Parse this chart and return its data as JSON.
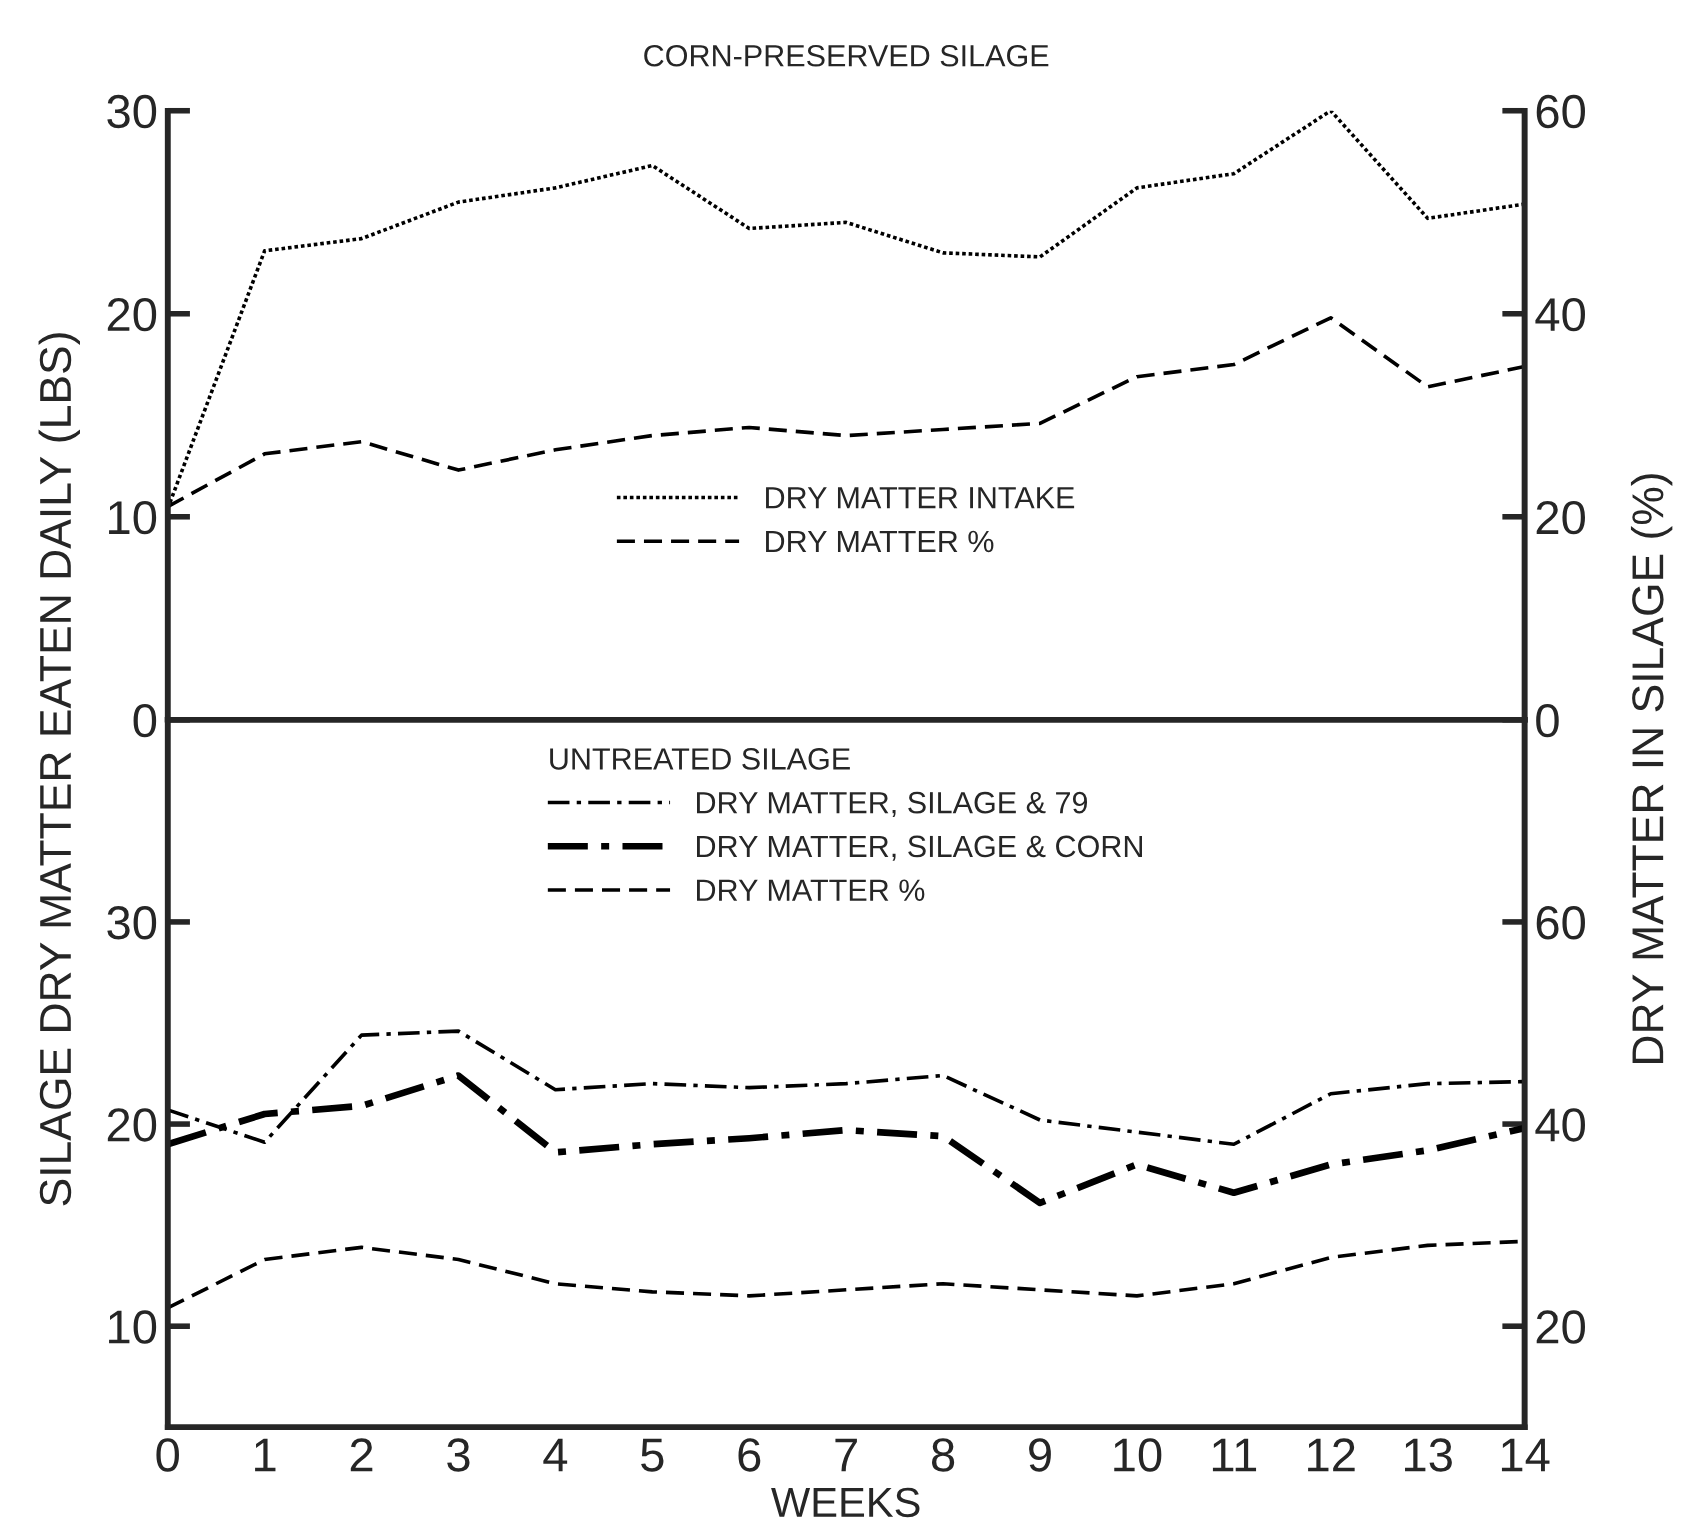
{
  "chart_data": [
    {
      "type": "line",
      "title": "CORN-PRESERVED SILAGE",
      "ylabel": "SILAGE DRY MATTER EATEN DAILY (LBS)",
      "y2label": "DRY MATTER IN SILAGE (%)",
      "x": [
        0,
        1,
        2,
        3,
        4,
        5,
        6,
        7,
        8,
        9,
        10,
        11,
        12,
        13,
        14
      ],
      "xlim": [
        0,
        14
      ],
      "ylim": [
        0,
        30
      ],
      "yticks": [
        0,
        10,
        20,
        30
      ],
      "y2lim": [
        0,
        60
      ],
      "y2ticks": [
        0,
        20,
        40,
        60
      ],
      "tick_labels": "y",
      "legend": "bottom",
      "grid": false,
      "series": [
        {
          "name": "DRY MATTER INTAKE",
          "color": "#000000",
          "line_style": "dotted",
          "values": [
            10.4,
            23.1,
            23.7,
            25.5,
            26.2,
            27.3,
            24.2,
            24.5,
            23.0,
            22.8,
            26.2,
            26.9,
            30.0,
            24.7,
            25.4
          ]
        },
        {
          "name": "DRY MATTER %",
          "color": "#000000",
          "line_style": "dashed",
          "axis": "y2",
          "values": [
            21.0,
            26.2,
            27.4,
            24.6,
            26.6,
            28.0,
            28.8,
            28.0,
            28.6,
            29.2,
            33.8,
            35.0,
            39.6,
            32.8,
            34.8
          ]
        }
      ]
    },
    {
      "type": "line",
      "xlabel": "WEEKS",
      "legend_title": "UNTREATED SILAGE",
      "x": [
        0,
        1,
        2,
        3,
        4,
        5,
        6,
        7,
        8,
        9,
        10,
        11,
        12,
        13,
        14
      ],
      "xlim": [
        0,
        14
      ],
      "xticks": [
        0,
        1,
        2,
        3,
        4,
        5,
        6,
        7,
        8,
        9,
        10,
        11,
        12,
        13,
        14
      ],
      "ylim": [
        5,
        40
      ],
      "yticks": [
        10,
        20,
        30
      ],
      "y2lim": [
        10,
        80
      ],
      "y2ticks": [
        20,
        40,
        60
      ],
      "legend": "top",
      "grid": false,
      "series": [
        {
          "name": "DRY MATTER, SILAGE & 79",
          "color": "#000000",
          "line_style": "dashdot",
          "values": [
            20.7,
            19.1,
            24.4,
            24.6,
            21.7,
            22.0,
            21.8,
            22.0,
            22.4,
            20.2,
            19.6,
            19.0,
            21.5,
            22.0,
            22.1
          ]
        },
        {
          "name": "DRY MATTER, SILAGE & CORN",
          "color": "#000000",
          "line_style": "dashdot",
          "values": [
            19.0,
            20.5,
            20.9,
            22.4,
            18.6,
            19.0,
            19.3,
            19.7,
            19.4,
            16.1,
            18.0,
            16.6,
            18.0,
            18.7,
            19.8
          ]
        },
        {
          "name": "DRY MATTER %",
          "color": "#000000",
          "line_style": "dashed",
          "axis": "y2",
          "values": [
            21.8,
            26.6,
            27.8,
            26.6,
            24.2,
            23.4,
            23.0,
            23.6,
            24.2,
            23.6,
            23.0,
            24.2,
            26.8,
            28.0,
            28.4
          ]
        }
      ]
    }
  ]
}
